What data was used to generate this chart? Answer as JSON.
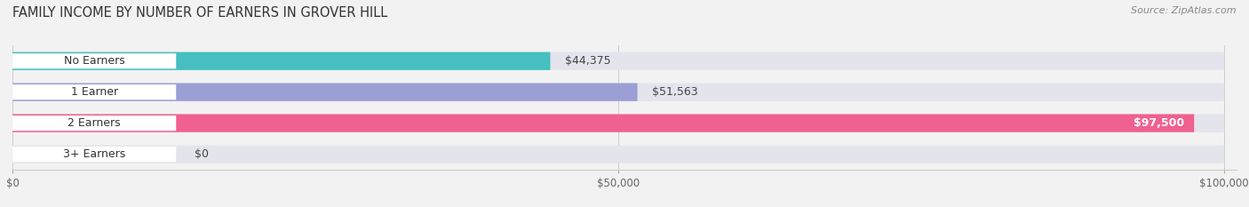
{
  "title": "FAMILY INCOME BY NUMBER OF EARNERS IN GROVER HILL",
  "source": "Source: ZipAtlas.com",
  "categories": [
    "No Earners",
    "1 Earner",
    "2 Earners",
    "3+ Earners"
  ],
  "values": [
    44375,
    51563,
    97500,
    0
  ],
  "bar_colors": [
    "#45bfbf",
    "#9b9fd4",
    "#f06090",
    "#f5c89a"
  ],
  "value_labels": [
    "$44,375",
    "$51,563",
    "$97,500",
    "$0"
  ],
  "xlim": [
    0,
    100000
  ],
  "xticks": [
    0,
    50000,
    100000
  ],
  "xtick_labels": [
    "$0",
    "$50,000",
    "$100,000"
  ],
  "bar_height": 0.58,
  "background_color": "#f2f2f2",
  "bar_bg_color": "#e4e4ec",
  "title_fontsize": 10.5,
  "source_fontsize": 8,
  "label_fontsize": 9,
  "value_fontsize": 9
}
